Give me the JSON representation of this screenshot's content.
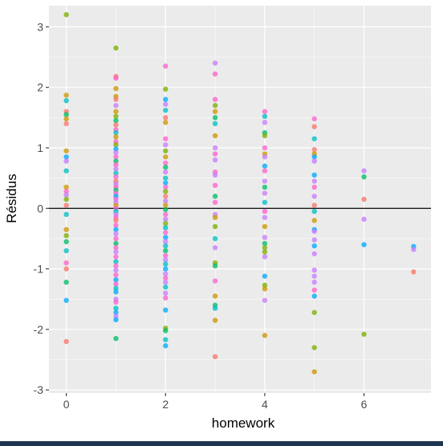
{
  "chart_data": {
    "type": "scatter",
    "title": "",
    "xlabel": "homework",
    "ylabel": "Résidus",
    "xlim": [
      -0.35,
      7.35
    ],
    "ylim": [
      -3.05,
      3.35
    ],
    "x_ticks": [
      0,
      2,
      4,
      6
    ],
    "y_ticks": [
      -3,
      -2,
      -1,
      0,
      1,
      2,
      3
    ],
    "x_tick_labels": [
      "0",
      "2",
      "4",
      "6"
    ],
    "y_tick_labels": [
      "-3",
      "-2",
      "-1",
      "0",
      "1",
      "2",
      "3"
    ],
    "reference_line_y": 0,
    "grid": true,
    "legend": "none",
    "panel_background": "#ebebeb",
    "grid_color": "#ffffff",
    "point_colors": [
      "#f8766d",
      "#cd9600",
      "#7cae00",
      "#00be67",
      "#00bfc4",
      "#00a9ff",
      "#c77cff",
      "#ff61cc"
    ],
    "points": [
      {
        "x": 0,
        "y": 3.2,
        "c": 2
      },
      {
        "x": 0,
        "y": 1.87,
        "c": 1
      },
      {
        "x": 0,
        "y": 1.78,
        "c": 4
      },
      {
        "x": 0,
        "y": 1.6,
        "c": 0
      },
      {
        "x": 0,
        "y": 1.55,
        "c": 3
      },
      {
        "x": 0,
        "y": 1.48,
        "c": 1
      },
      {
        "x": 0,
        "y": 1.4,
        "c": 0
      },
      {
        "x": 0,
        "y": 0.95,
        "c": 1
      },
      {
        "x": 0,
        "y": 0.85,
        "c": 5
      },
      {
        "x": 0,
        "y": 0.78,
        "c": 6
      },
      {
        "x": 0,
        "y": 0.62,
        "c": 4
      },
      {
        "x": 0,
        "y": 0.35,
        "c": 1
      },
      {
        "x": 0,
        "y": 0.28,
        "c": 7
      },
      {
        "x": 0,
        "y": 0.22,
        "c": 6
      },
      {
        "x": 0,
        "y": 0.15,
        "c": 2
      },
      {
        "x": 0,
        "y": 0.05,
        "c": 0
      },
      {
        "x": 0,
        "y": -0.1,
        "c": 4
      },
      {
        "x": 0,
        "y": -0.35,
        "c": 1
      },
      {
        "x": 0,
        "y": -0.45,
        "c": 2
      },
      {
        "x": 0,
        "y": -0.55,
        "c": 3
      },
      {
        "x": 0,
        "y": -0.7,
        "c": 4
      },
      {
        "x": 0,
        "y": -0.9,
        "c": 7
      },
      {
        "x": 0,
        "y": -1.0,
        "c": 0
      },
      {
        "x": 0,
        "y": -1.22,
        "c": 3
      },
      {
        "x": 0,
        "y": -1.52,
        "c": 5
      },
      {
        "x": 0,
        "y": -2.2,
        "c": 0
      },
      {
        "x": 1,
        "y": 2.65,
        "c": 2
      },
      {
        "x": 1,
        "y": 2.18,
        "c": 0
      },
      {
        "x": 1,
        "y": 2.15,
        "c": 7
      },
      {
        "x": 1,
        "y": 1.98,
        "c": 1
      },
      {
        "x": 1,
        "y": 1.85,
        "c": 1
      },
      {
        "x": 1,
        "y": 1.8,
        "c": 0
      },
      {
        "x": 1,
        "y": 1.7,
        "c": 6
      },
      {
        "x": 1,
        "y": 1.6,
        "c": 1
      },
      {
        "x": 1,
        "y": 1.52,
        "c": 2
      },
      {
        "x": 1,
        "y": 1.45,
        "c": 3
      },
      {
        "x": 1,
        "y": 1.38,
        "c": 0
      },
      {
        "x": 1,
        "y": 1.3,
        "c": 7
      },
      {
        "x": 1,
        "y": 1.25,
        "c": 4
      },
      {
        "x": 1,
        "y": 1.18,
        "c": 1
      },
      {
        "x": 1,
        "y": 1.1,
        "c": 7
      },
      {
        "x": 1,
        "y": 1.05,
        "c": 2
      },
      {
        "x": 1,
        "y": 0.98,
        "c": 5
      },
      {
        "x": 1,
        "y": 0.92,
        "c": 6
      },
      {
        "x": 1,
        "y": 0.85,
        "c": 7
      },
      {
        "x": 1,
        "y": 0.78,
        "c": 3
      },
      {
        "x": 1,
        "y": 0.72,
        "c": 7
      },
      {
        "x": 1,
        "y": 0.65,
        "c": 6
      },
      {
        "x": 1,
        "y": 0.58,
        "c": 4
      },
      {
        "x": 1,
        "y": 0.52,
        "c": 7
      },
      {
        "x": 1,
        "y": 0.45,
        "c": 0
      },
      {
        "x": 1,
        "y": 0.4,
        "c": 6
      },
      {
        "x": 1,
        "y": 0.35,
        "c": 7
      },
      {
        "x": 1,
        "y": 0.3,
        "c": 3
      },
      {
        "x": 1,
        "y": 0.25,
        "c": 7
      },
      {
        "x": 1,
        "y": 0.2,
        "c": 5
      },
      {
        "x": 1,
        "y": 0.15,
        "c": 7
      },
      {
        "x": 1,
        "y": 0.1,
        "c": 6
      },
      {
        "x": 1,
        "y": 0.05,
        "c": 1
      },
      {
        "x": 1,
        "y": 0.0,
        "c": 7
      },
      {
        "x": 1,
        "y": -0.05,
        "c": 4
      },
      {
        "x": 1,
        "y": -0.1,
        "c": 6
      },
      {
        "x": 1,
        "y": -0.15,
        "c": 7
      },
      {
        "x": 1,
        "y": -0.2,
        "c": 0
      },
      {
        "x": 1,
        "y": -0.28,
        "c": 7
      },
      {
        "x": 1,
        "y": -0.35,
        "c": 5
      },
      {
        "x": 1,
        "y": -0.42,
        "c": 6
      },
      {
        "x": 1,
        "y": -0.5,
        "c": 7
      },
      {
        "x": 1,
        "y": -0.58,
        "c": 3
      },
      {
        "x": 1,
        "y": -0.65,
        "c": 7
      },
      {
        "x": 1,
        "y": -0.72,
        "c": 6
      },
      {
        "x": 1,
        "y": -0.8,
        "c": 7
      },
      {
        "x": 1,
        "y": -0.88,
        "c": 4
      },
      {
        "x": 1,
        "y": -0.95,
        "c": 7
      },
      {
        "x": 1,
        "y": -1.02,
        "c": 6
      },
      {
        "x": 1,
        "y": -1.1,
        "c": 7
      },
      {
        "x": 1,
        "y": -1.18,
        "c": 5
      },
      {
        "x": 1,
        "y": -1.25,
        "c": 7
      },
      {
        "x": 1,
        "y": -1.32,
        "c": 4
      },
      {
        "x": 1,
        "y": -1.38,
        "c": 5
      },
      {
        "x": 1,
        "y": -1.5,
        "c": 6
      },
      {
        "x": 1,
        "y": -1.55,
        "c": 7
      },
      {
        "x": 1,
        "y": -1.65,
        "c": 4
      },
      {
        "x": 1,
        "y": -1.72,
        "c": 5
      },
      {
        "x": 1,
        "y": -1.78,
        "c": 6
      },
      {
        "x": 1,
        "y": -1.84,
        "c": 5
      },
      {
        "x": 1,
        "y": -2.15,
        "c": 3
      },
      {
        "x": 2,
        "y": 2.35,
        "c": 7
      },
      {
        "x": 2,
        "y": 1.97,
        "c": 2
      },
      {
        "x": 2,
        "y": 1.8,
        "c": 5
      },
      {
        "x": 2,
        "y": 1.72,
        "c": 6
      },
      {
        "x": 2,
        "y": 1.62,
        "c": 4
      },
      {
        "x": 2,
        "y": 1.5,
        "c": 0
      },
      {
        "x": 2,
        "y": 1.42,
        "c": 1
      },
      {
        "x": 2,
        "y": 1.15,
        "c": 7
      },
      {
        "x": 2,
        "y": 1.05,
        "c": 6
      },
      {
        "x": 2,
        "y": 0.95,
        "c": 2
      },
      {
        "x": 2,
        "y": 0.85,
        "c": 1
      },
      {
        "x": 2,
        "y": 0.75,
        "c": 7
      },
      {
        "x": 2,
        "y": 0.68,
        "c": 3
      },
      {
        "x": 2,
        "y": 0.6,
        "c": 6
      },
      {
        "x": 2,
        "y": 0.5,
        "c": 4
      },
      {
        "x": 2,
        "y": 0.42,
        "c": 5
      },
      {
        "x": 2,
        "y": 0.35,
        "c": 7
      },
      {
        "x": 2,
        "y": 0.28,
        "c": 2
      },
      {
        "x": 2,
        "y": 0.2,
        "c": 0
      },
      {
        "x": 2,
        "y": 0.12,
        "c": 6
      },
      {
        "x": 2,
        "y": 0.05,
        "c": 1
      },
      {
        "x": 2,
        "y": -0.02,
        "c": 3
      },
      {
        "x": 2,
        "y": -0.1,
        "c": 7
      },
      {
        "x": 2,
        "y": -0.18,
        "c": 6
      },
      {
        "x": 2,
        "y": -0.25,
        "c": 2
      },
      {
        "x": 2,
        "y": -0.32,
        "c": 4
      },
      {
        "x": 2,
        "y": -0.4,
        "c": 7
      },
      {
        "x": 2,
        "y": -0.48,
        "c": 5
      },
      {
        "x": 2,
        "y": -0.55,
        "c": 6
      },
      {
        "x": 2,
        "y": -0.62,
        "c": 4
      },
      {
        "x": 2,
        "y": -0.7,
        "c": 3
      },
      {
        "x": 2,
        "y": -0.78,
        "c": 7
      },
      {
        "x": 2,
        "y": -0.85,
        "c": 6
      },
      {
        "x": 2,
        "y": -0.92,
        "c": 4
      },
      {
        "x": 2,
        "y": -1.0,
        "c": 5
      },
      {
        "x": 2,
        "y": -1.08,
        "c": 6
      },
      {
        "x": 2,
        "y": -1.15,
        "c": 7
      },
      {
        "x": 2,
        "y": -1.22,
        "c": 6
      },
      {
        "x": 2,
        "y": -1.3,
        "c": 4
      },
      {
        "x": 2,
        "y": -1.4,
        "c": 6
      },
      {
        "x": 2,
        "y": -1.48,
        "c": 7
      },
      {
        "x": 2,
        "y": -1.68,
        "c": 5
      },
      {
        "x": 2,
        "y": -1.98,
        "c": 2
      },
      {
        "x": 2,
        "y": -2.02,
        "c": 3
      },
      {
        "x": 2,
        "y": -2.17,
        "c": 4
      },
      {
        "x": 2,
        "y": -2.27,
        "c": 5
      },
      {
        "x": 3,
        "y": 2.4,
        "c": 6
      },
      {
        "x": 3,
        "y": 2.22,
        "c": 7
      },
      {
        "x": 3,
        "y": 1.8,
        "c": 7
      },
      {
        "x": 3,
        "y": 1.7,
        "c": 2
      },
      {
        "x": 3,
        "y": 1.6,
        "c": 1
      },
      {
        "x": 3,
        "y": 1.5,
        "c": 3
      },
      {
        "x": 3,
        "y": 1.4,
        "c": 4
      },
      {
        "x": 3,
        "y": 1.2,
        "c": 1
      },
      {
        "x": 3,
        "y": 1.0,
        "c": 6
      },
      {
        "x": 3,
        "y": 0.9,
        "c": 7
      },
      {
        "x": 3,
        "y": 0.8,
        "c": 6
      },
      {
        "x": 3,
        "y": 0.6,
        "c": 7
      },
      {
        "x": 3,
        "y": 0.55,
        "c": 6
      },
      {
        "x": 3,
        "y": 0.38,
        "c": 7
      },
      {
        "x": 3,
        "y": 0.2,
        "c": 3
      },
      {
        "x": 3,
        "y": 0.1,
        "c": 7
      },
      {
        "x": 3,
        "y": -0.1,
        "c": 6
      },
      {
        "x": 3,
        "y": -0.15,
        "c": 1
      },
      {
        "x": 3,
        "y": -0.3,
        "c": 2
      },
      {
        "x": 3,
        "y": -0.5,
        "c": 4
      },
      {
        "x": 3,
        "y": -0.65,
        "c": 6
      },
      {
        "x": 3,
        "y": -0.9,
        "c": 2
      },
      {
        "x": 3,
        "y": -0.95,
        "c": 3
      },
      {
        "x": 3,
        "y": -1.2,
        "c": 7
      },
      {
        "x": 3,
        "y": -1.45,
        "c": 1
      },
      {
        "x": 3,
        "y": -1.6,
        "c": 3
      },
      {
        "x": 3,
        "y": -1.65,
        "c": 4
      },
      {
        "x": 3,
        "y": -1.85,
        "c": 1
      },
      {
        "x": 3,
        "y": -2.45,
        "c": 0
      },
      {
        "x": 4,
        "y": 1.6,
        "c": 7
      },
      {
        "x": 4,
        "y": 1.52,
        "c": 4
      },
      {
        "x": 4,
        "y": 1.42,
        "c": 6
      },
      {
        "x": 4,
        "y": 1.25,
        "c": 3
      },
      {
        "x": 4,
        "y": 1.2,
        "c": 2
      },
      {
        "x": 4,
        "y": 1.0,
        "c": 7
      },
      {
        "x": 4,
        "y": 0.9,
        "c": 1
      },
      {
        "x": 4,
        "y": 0.85,
        "c": 6
      },
      {
        "x": 4,
        "y": 0.7,
        "c": 5
      },
      {
        "x": 4,
        "y": 0.62,
        "c": 7
      },
      {
        "x": 4,
        "y": 0.45,
        "c": 6
      },
      {
        "x": 4,
        "y": 0.35,
        "c": 3
      },
      {
        "x": 4,
        "y": 0.25,
        "c": 6
      },
      {
        "x": 4,
        "y": 0.1,
        "c": 4
      },
      {
        "x": 4,
        "y": -0.05,
        "c": 7
      },
      {
        "x": 4,
        "y": -0.15,
        "c": 6
      },
      {
        "x": 4,
        "y": -0.3,
        "c": 1
      },
      {
        "x": 4,
        "y": -0.48,
        "c": 6
      },
      {
        "x": 4,
        "y": -0.58,
        "c": 3
      },
      {
        "x": 4,
        "y": -0.65,
        "c": 2
      },
      {
        "x": 4,
        "y": -0.72,
        "c": 2
      },
      {
        "x": 4,
        "y": -0.8,
        "c": 6
      },
      {
        "x": 4,
        "y": -1.12,
        "c": 5
      },
      {
        "x": 4,
        "y": -1.27,
        "c": 2
      },
      {
        "x": 4,
        "y": -1.33,
        "c": 1
      },
      {
        "x": 4,
        "y": -1.52,
        "c": 6
      },
      {
        "x": 4,
        "y": -2.1,
        "c": 1
      },
      {
        "x": 5,
        "y": 1.48,
        "c": 7
      },
      {
        "x": 5,
        "y": 1.35,
        "c": 0
      },
      {
        "x": 5,
        "y": 1.15,
        "c": 4
      },
      {
        "x": 5,
        "y": 0.97,
        "c": 0
      },
      {
        "x": 5,
        "y": 0.9,
        "c": 1
      },
      {
        "x": 5,
        "y": 0.85,
        "c": 5
      },
      {
        "x": 5,
        "y": 0.78,
        "c": 6
      },
      {
        "x": 5,
        "y": 0.55,
        "c": 5
      },
      {
        "x": 5,
        "y": 0.45,
        "c": 6
      },
      {
        "x": 5,
        "y": 0.35,
        "c": 7
      },
      {
        "x": 5,
        "y": 0.2,
        "c": 6
      },
      {
        "x": 5,
        "y": 0.05,
        "c": 0
      },
      {
        "x": 5,
        "y": -0.05,
        "c": 4
      },
      {
        "x": 5,
        "y": -0.2,
        "c": 1
      },
      {
        "x": 5,
        "y": -0.35,
        "c": 5
      },
      {
        "x": 5,
        "y": -0.38,
        "c": 6
      },
      {
        "x": 5,
        "y": -0.52,
        "c": 6
      },
      {
        "x": 5,
        "y": -0.62,
        "c": 5
      },
      {
        "x": 5,
        "y": -0.75,
        "c": 6
      },
      {
        "x": 5,
        "y": -1.02,
        "c": 6
      },
      {
        "x": 5,
        "y": -1.12,
        "c": 6
      },
      {
        "x": 5,
        "y": -1.22,
        "c": 6
      },
      {
        "x": 5,
        "y": -1.35,
        "c": 7
      },
      {
        "x": 5,
        "y": -1.45,
        "c": 5
      },
      {
        "x": 5,
        "y": -1.72,
        "c": 2
      },
      {
        "x": 5,
        "y": -2.3,
        "c": 2
      },
      {
        "x": 5,
        "y": -2.7,
        "c": 1
      },
      {
        "x": 6,
        "y": 0.62,
        "c": 6
      },
      {
        "x": 6,
        "y": 0.52,
        "c": 3
      },
      {
        "x": 6,
        "y": 0.15,
        "c": 0
      },
      {
        "x": 6,
        "y": -0.18,
        "c": 6
      },
      {
        "x": 6,
        "y": -0.6,
        "c": 5
      },
      {
        "x": 6,
        "y": -2.08,
        "c": 2
      },
      {
        "x": 7,
        "y": -0.63,
        "c": 5
      },
      {
        "x": 7,
        "y": -0.68,
        "c": 6
      },
      {
        "x": 7,
        "y": -1.05,
        "c": 0
      }
    ]
  }
}
